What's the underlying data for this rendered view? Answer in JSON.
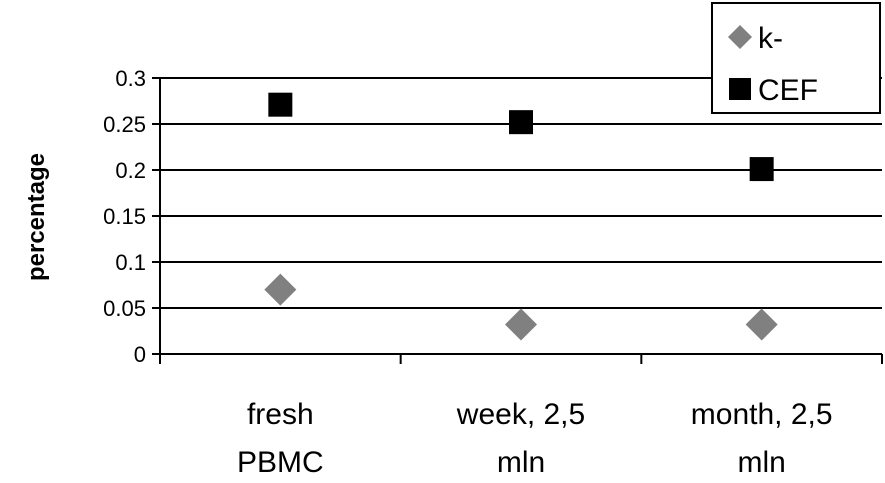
{
  "chart_data": {
    "type": "scatter",
    "categories": [
      "fresh PBMC",
      "week, 2,5 mln",
      "month, 2,5 mln"
    ],
    "category_lines": [
      [
        "fresh",
        "PBMC"
      ],
      [
        "week, 2,5",
        "mln"
      ],
      [
        "month, 2,5",
        "mln"
      ]
    ],
    "series": [
      {
        "name": "k-",
        "values": [
          0.07,
          0.032,
          0.032
        ],
        "color": "#808080",
        "marker": "diamond"
      },
      {
        "name": "CEF",
        "values": [
          0.271,
          0.252,
          0.201
        ],
        "color": "#000000",
        "marker": "square"
      }
    ],
    "ylabel": "percentage",
    "ylim": [
      0,
      0.3
    ],
    "yticks": [
      "0",
      "0.05",
      "0.1",
      "0.15",
      "0.2",
      "0.25",
      "0.3"
    ],
    "grid": true,
    "legend_position": "top-right"
  }
}
